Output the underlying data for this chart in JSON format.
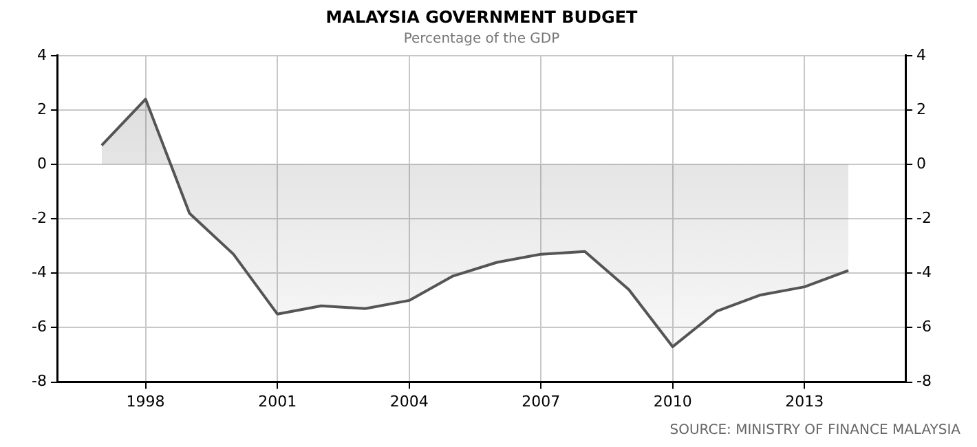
{
  "chart_data": {
    "type": "area",
    "title": "MALAYSIA GOVERNMENT BUDGET",
    "subtitle": "Percentage of the GDP",
    "x": [
      1997,
      1998,
      1999,
      2000,
      2001,
      2002,
      2003,
      2004,
      2005,
      2006,
      2007,
      2008,
      2009,
      2010,
      2011,
      2012,
      2013,
      2014
    ],
    "series": [
      {
        "color": "#555555",
        "values": [
          0.7,
          2.4,
          -1.8,
          -3.3,
          -5.5,
          -5.2,
          -5.3,
          -5.0,
          -4.1,
          -3.6,
          -3.3,
          -3.2,
          -4.6,
          -6.7,
          -5.4,
          -4.8,
          -4.5,
          -3.9
        ]
      }
    ],
    "xlim": [
      1996,
      2015.3
    ],
    "xticks": [
      1998,
      2001,
      2004,
      2007,
      2010,
      2013
    ],
    "ylim": [
      -8,
      4
    ],
    "yticks": [
      -8,
      -6,
      -4,
      -2,
      0,
      2,
      4
    ],
    "y2lim": [
      -8,
      4
    ],
    "y2ticks": [
      -8,
      -6,
      -4,
      -2,
      0,
      2,
      4
    ],
    "grid": true,
    "legend": false,
    "annotations": [
      "SOURCE: MINISTRY OF FINANCE MALAYSIA"
    ]
  }
}
